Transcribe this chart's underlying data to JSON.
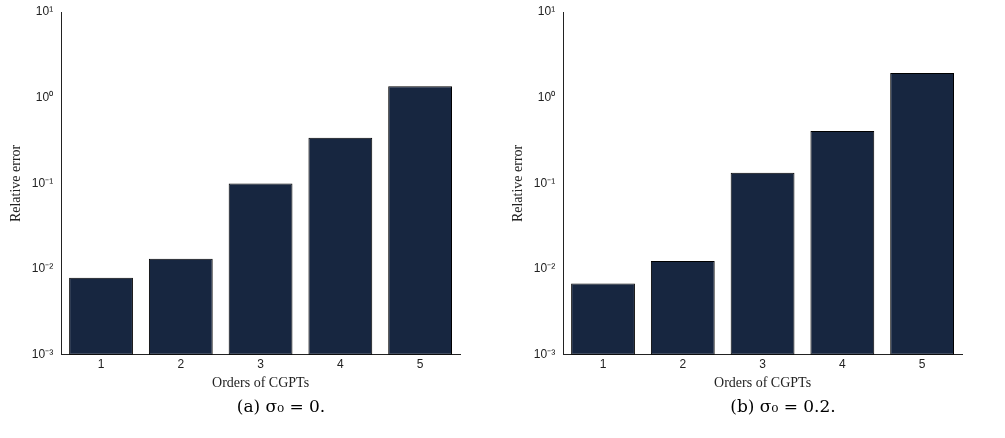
{
  "chart_data": [
    {
      "type": "bar",
      "xlabel": "Orders of CGPTs",
      "ylabel": "Relative error",
      "categories": [
        "1",
        "2",
        "3",
        "4",
        "5"
      ],
      "values": [
        0.0079,
        0.0132,
        0.1,
        0.34,
        1.36
      ],
      "color": "#172640",
      "log": "y",
      "legend": false,
      "ylim": [
        0.001,
        10
      ],
      "yticks": [
        {
          "value": 0.001,
          "label": "10⁻³"
        },
        {
          "value": 0.01,
          "label": "10⁻²"
        },
        {
          "value": 0.1,
          "label": "10⁻¹"
        },
        {
          "value": 1,
          "label": "10⁰"
        },
        {
          "value": 10,
          "label": "10¹"
        }
      ],
      "annotations": [
        "(a) σ₀ = 0."
      ]
    },
    {
      "type": "bar",
      "xlabel": "Orders of CGPTs",
      "ylabel": "Relative error",
      "categories": [
        "1",
        "2",
        "3",
        "4",
        "5"
      ],
      "values": [
        0.0068,
        0.0124,
        0.133,
        0.41,
        1.94
      ],
      "color": "#172640",
      "log": "y",
      "legend": false,
      "ylim": [
        0.001,
        10
      ],
      "yticks": [
        {
          "value": 0.001,
          "label": "10⁻³"
        },
        {
          "value": 0.01,
          "label": "10⁻²"
        },
        {
          "value": 0.1,
          "label": "10⁻¹"
        },
        {
          "value": 1,
          "label": "10⁰"
        },
        {
          "value": 10,
          "label": "10¹"
        }
      ],
      "annotations": [
        "(b) σ₀ = 0.2."
      ]
    }
  ]
}
